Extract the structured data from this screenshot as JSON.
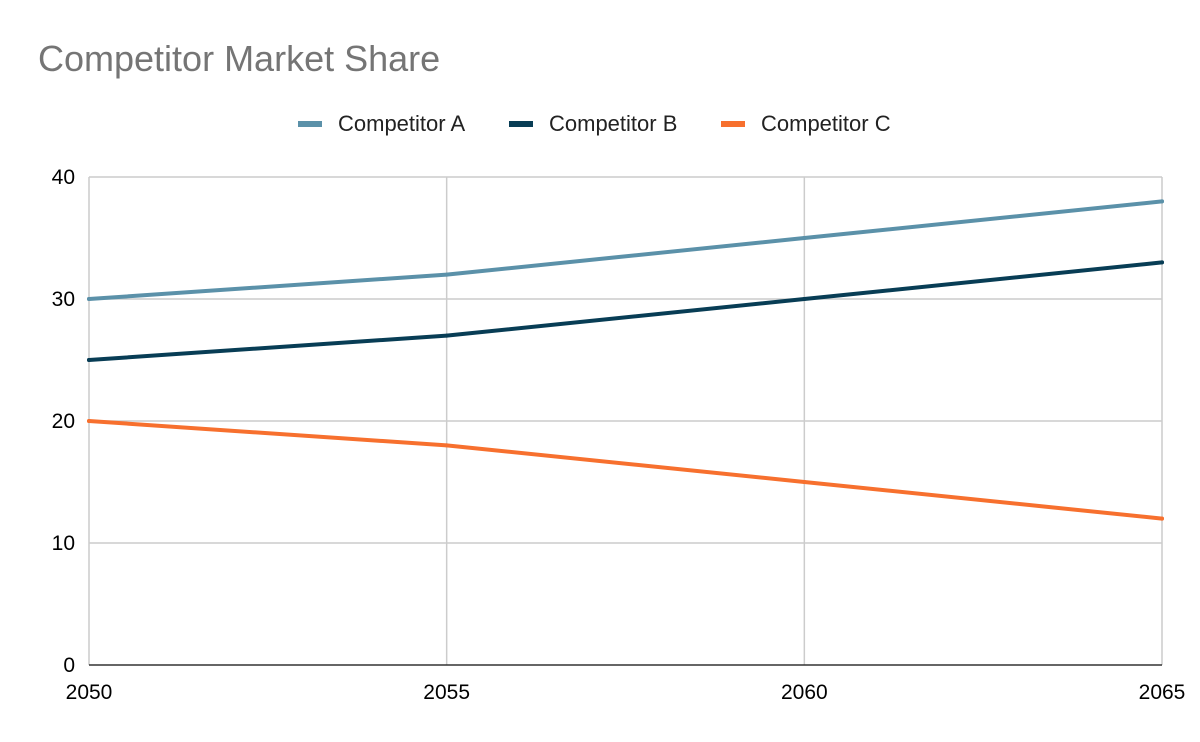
{
  "chart_data": {
    "type": "line",
    "title": "Competitor Market Share",
    "xlabel": "",
    "ylabel": "",
    "x": [
      2050,
      2055,
      2060,
      2065
    ],
    "x_tick_labels": [
      "2050",
      "2055",
      "2060",
      "2065"
    ],
    "y_tick_labels": [
      "0",
      "10",
      "20",
      "30",
      "40"
    ],
    "xlim": [
      2050,
      2065
    ],
    "ylim": [
      0,
      40
    ],
    "grid": true,
    "legend_position": "top",
    "series": [
      {
        "name": "Competitor A",
        "color": "#5b91a9",
        "values": [
          30,
          32,
          35,
          38
        ]
      },
      {
        "name": "Competitor B",
        "color": "#083d55",
        "values": [
          25,
          27,
          30,
          33
        ]
      },
      {
        "name": "Competitor C",
        "color": "#f7702e",
        "values": [
          20,
          18,
          15,
          12
        ]
      }
    ]
  }
}
